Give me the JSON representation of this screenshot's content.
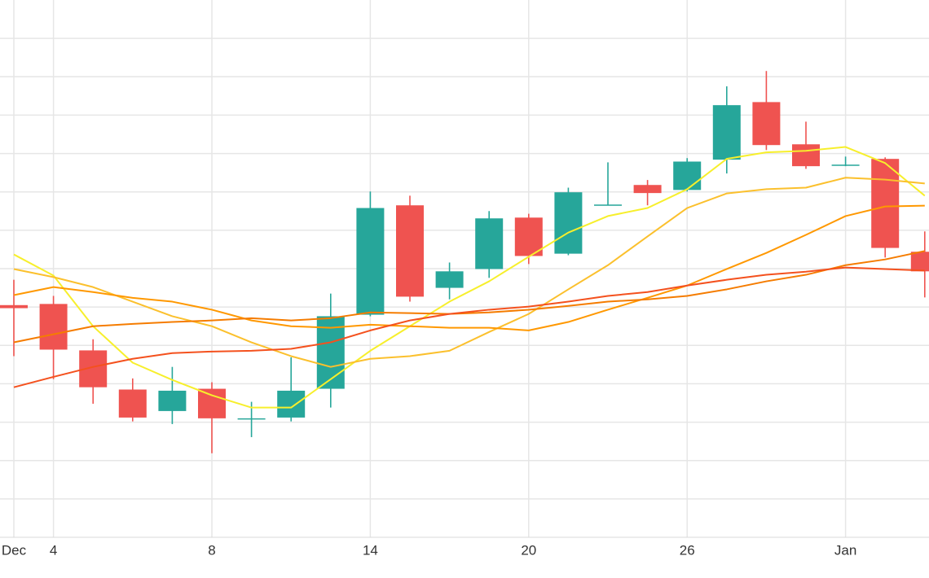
{
  "chart_data": {
    "type": "candlestick",
    "categories": [
      "Dec",
      "4",
      null,
      null,
      null,
      "8",
      null,
      null,
      null,
      "14",
      null,
      null,
      null,
      "20",
      null,
      null,
      null,
      "26",
      null,
      null,
      null,
      "Jan",
      null,
      null
    ],
    "open": [
      6.05,
      6.08,
      4.87,
      3.85,
      3.29,
      3.87,
      3.1,
      3.12,
      3.87,
      5.8,
      8.65,
      6.5,
      6.99,
      8.33,
      7.39,
      8.65,
      9.18,
      9.05,
      9.84,
      11.34,
      10.24,
      9.69,
      9.86,
      7.44
    ],
    "high": [
      6.71,
      6.29,
      5.16,
      4.14,
      4.44,
      4.04,
      3.53,
      4.69,
      6.35,
      9.01,
      8.9,
      7.16,
      8.5,
      8.43,
      9.11,
      9.77,
      9.31,
      9.88,
      11.75,
      12.15,
      10.83,
      9.92,
      9.9,
      7.97
    ],
    "low": [
      4.72,
      4.12,
      3.48,
      3.02,
      2.95,
      2.19,
      2.61,
      3.02,
      3.38,
      5.76,
      6.14,
      6.2,
      6.76,
      7.12,
      7.35,
      8.65,
      8.65,
      9.01,
      9.48,
      10.09,
      9.6,
      9.67,
      7.29,
      6.25
    ],
    "close": [
      5.97,
      4.89,
      3.91,
      3.12,
      3.82,
      3.1,
      3.1,
      3.82,
      5.76,
      8.58,
      6.27,
      6.93,
      8.31,
      7.33,
      8.99,
      8.67,
      8.97,
      9.79,
      11.26,
      10.22,
      9.67,
      9.71,
      7.54,
      6.93
    ],
    "up_color": "#26a69a",
    "down_color": "#ef5350",
    "series": [
      {
        "color": "#f7ef2c",
        "values": [
          7.37,
          6.82,
          5.5,
          4.55,
          4.1,
          3.7,
          3.38,
          3.38,
          4.12,
          4.86,
          5.5,
          6.14,
          6.67,
          7.31,
          7.94,
          8.37,
          8.58,
          9.07,
          9.86,
          10.03,
          10.07,
          10.17,
          9.75,
          8.9
        ]
      },
      {
        "color": "#fbc02d",
        "values": [
          6.99,
          6.78,
          6.52,
          6.14,
          5.76,
          5.5,
          5.08,
          4.72,
          4.44,
          4.65,
          4.72,
          4.86,
          5.35,
          5.82,
          6.46,
          7.09,
          7.84,
          8.58,
          8.96,
          9.07,
          9.11,
          9.37,
          9.32,
          9.22
        ]
      },
      {
        "color": "#ff9800",
        "values": [
          6.31,
          6.52,
          6.39,
          6.24,
          6.14,
          5.93,
          5.65,
          5.5,
          5.46,
          5.54,
          5.5,
          5.46,
          5.46,
          5.39,
          5.61,
          5.93,
          6.24,
          6.56,
          6.99,
          7.41,
          7.88,
          8.37,
          8.62,
          8.64
        ]
      },
      {
        "color": "#f57c00",
        "values": [
          5.08,
          5.29,
          5.5,
          5.56,
          5.61,
          5.65,
          5.71,
          5.65,
          5.71,
          5.86,
          5.84,
          5.82,
          5.86,
          5.93,
          6.03,
          6.14,
          6.2,
          6.29,
          6.46,
          6.67,
          6.84,
          7.09,
          7.24,
          7.46
        ]
      },
      {
        "color": "#f4511e",
        "values": [
          3.91,
          4.18,
          4.44,
          4.65,
          4.8,
          4.84,
          4.86,
          4.91,
          5.08,
          5.39,
          5.65,
          5.82,
          5.93,
          6.01,
          6.14,
          6.29,
          6.39,
          6.56,
          6.71,
          6.84,
          6.92,
          7.03,
          6.99,
          6.95
        ]
      }
    ],
    "ylim": [
      0,
      14
    ],
    "yticks": [
      1,
      2,
      3,
      4,
      5,
      6,
      7,
      8,
      9,
      10,
      11,
      12,
      13
    ],
    "grid": true
  }
}
